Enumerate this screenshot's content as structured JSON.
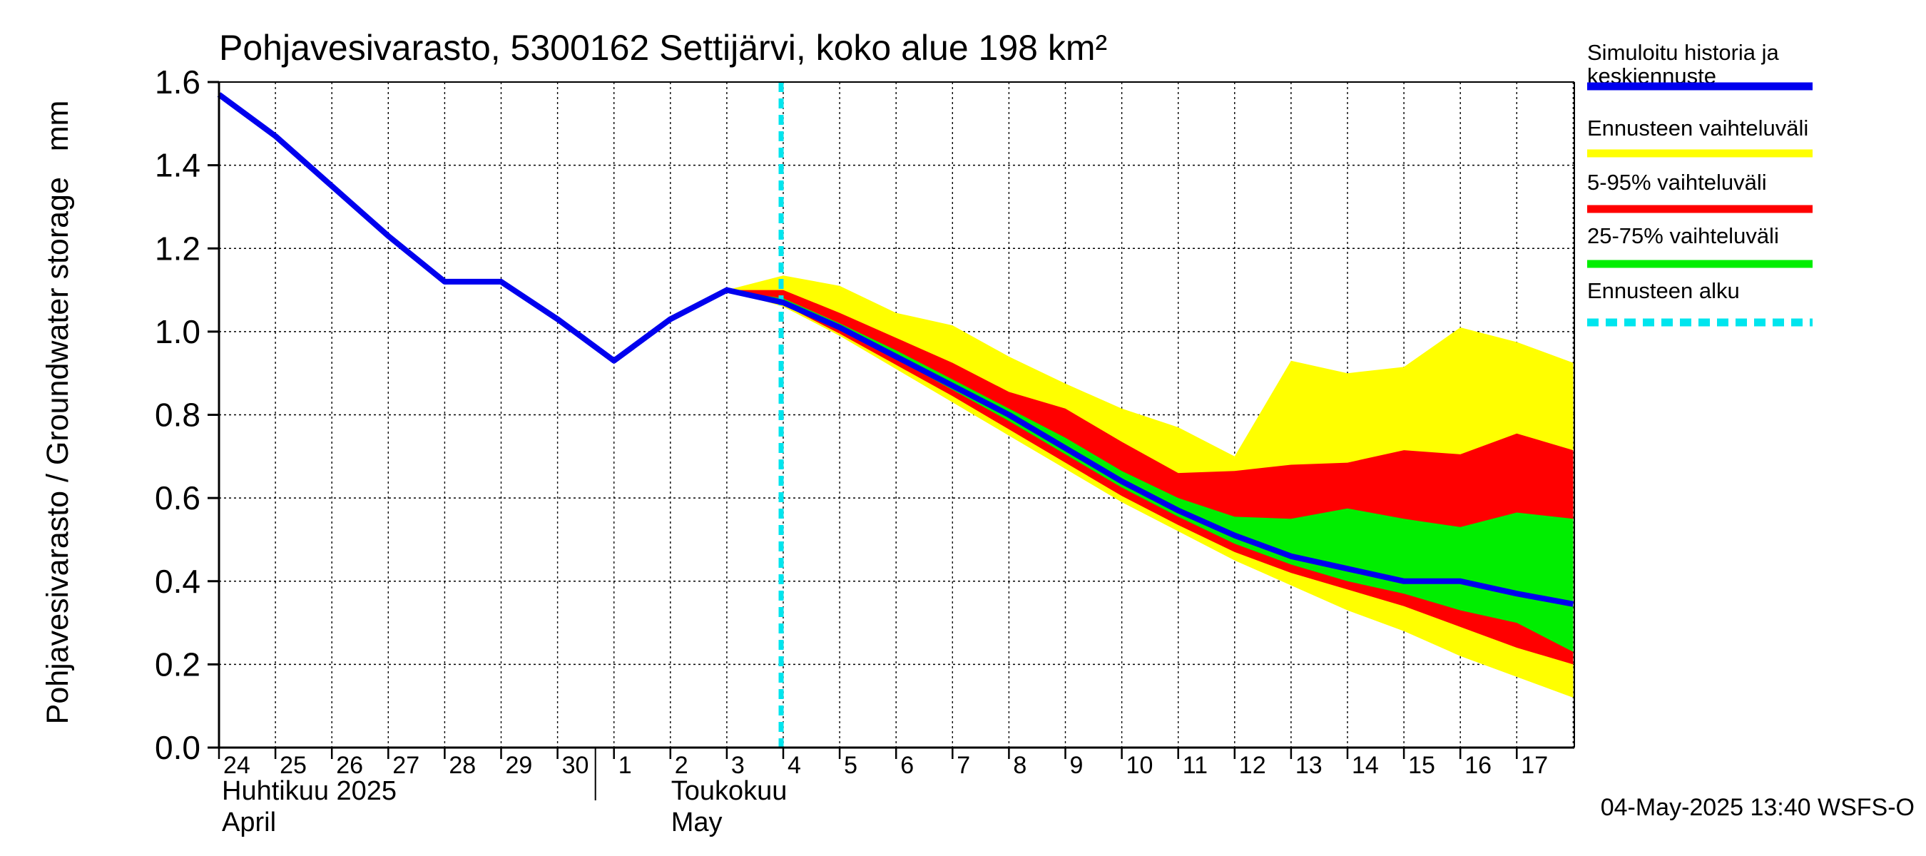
{
  "chart_data": {
    "type": "area",
    "title": "Pohjavesivarasto, 5300162 Settijärvi, koko alue 198 km²",
    "ylabel": "Pohjavesivarasto / Groundwater storage   mm",
    "ylim": [
      0.0,
      1.6
    ],
    "yticks": [
      "0.0",
      "0.2",
      "0.4",
      "0.6",
      "0.8",
      "1.0",
      "1.2",
      "1.4",
      "1.6"
    ],
    "x_day_labels": [
      "24",
      "25",
      "26",
      "27",
      "28",
      "29",
      "30",
      "1",
      "2",
      "3",
      "4",
      "5",
      "6",
      "7",
      "8",
      "9",
      "10",
      "11",
      "12",
      "13",
      "14",
      "15",
      "16",
      "17"
    ],
    "month_labels": [
      {
        "fi": "Huhtikuu  2025",
        "en": "April"
      },
      {
        "fi": "Toukokuu",
        "en": "May"
      }
    ],
    "forecast_start_index": 10,
    "history": [
      1.57,
      1.47,
      1.35,
      1.23,
      1.12,
      1.12,
      1.03,
      0.93,
      1.03,
      1.1
    ],
    "forecast_x": [
      9,
      10,
      11,
      12,
      13,
      14,
      15,
      16,
      17,
      18,
      19,
      20,
      21,
      22,
      23,
      24
    ],
    "median": [
      1.1,
      1.07,
      1.01,
      0.94,
      0.87,
      0.8,
      0.72,
      0.64,
      0.57,
      0.51,
      0.46,
      0.43,
      0.4,
      0.4,
      0.37,
      0.345
    ],
    "p0": [
      1.1,
      1.06,
      0.99,
      0.91,
      0.83,
      0.75,
      0.67,
      0.59,
      0.52,
      0.45,
      0.39,
      0.33,
      0.28,
      0.22,
      0.17,
      0.12
    ],
    "p5": [
      1.1,
      1.065,
      0.995,
      0.92,
      0.845,
      0.765,
      0.685,
      0.605,
      0.535,
      0.47,
      0.42,
      0.38,
      0.34,
      0.29,
      0.24,
      0.2
    ],
    "p25": [
      1.1,
      1.07,
      1.005,
      0.935,
      0.86,
      0.785,
      0.705,
      0.625,
      0.555,
      0.49,
      0.44,
      0.4,
      0.37,
      0.33,
      0.3,
      0.23
    ],
    "p75": [
      1.1,
      1.08,
      1.02,
      0.955,
      0.885,
      0.815,
      0.745,
      0.665,
      0.6,
      0.555,
      0.55,
      0.575,
      0.55,
      0.53,
      0.565,
      0.55
    ],
    "p95": [
      1.1,
      1.1,
      1.045,
      0.985,
      0.925,
      0.855,
      0.815,
      0.735,
      0.66,
      0.665,
      0.68,
      0.685,
      0.715,
      0.705,
      0.755,
      0.715
    ],
    "p100": [
      1.1,
      1.135,
      1.11,
      1.045,
      1.015,
      0.94,
      0.875,
      0.815,
      0.77,
      0.7,
      0.93,
      0.9,
      0.915,
      1.01,
      0.975,
      0.925
    ],
    "legend": [
      {
        "label": "Simuloitu historia ja keskiennuste",
        "color": "#0000ee",
        "style": "solid"
      },
      {
        "label": "Ennusteen vaihteluväli",
        "color": "#ffff00",
        "style": "solid"
      },
      {
        "label": "5-95% vaihteluväli",
        "color": "#ff0000",
        "style": "solid"
      },
      {
        "label": "25-75% vaihteluväli",
        "color": "#00ee00",
        "style": "solid"
      },
      {
        "label": "Ennusteen alku",
        "color": "#00e5ee",
        "style": "dashed"
      }
    ],
    "timestamp": "04-May-2025 13:40 WSFS-O"
  }
}
